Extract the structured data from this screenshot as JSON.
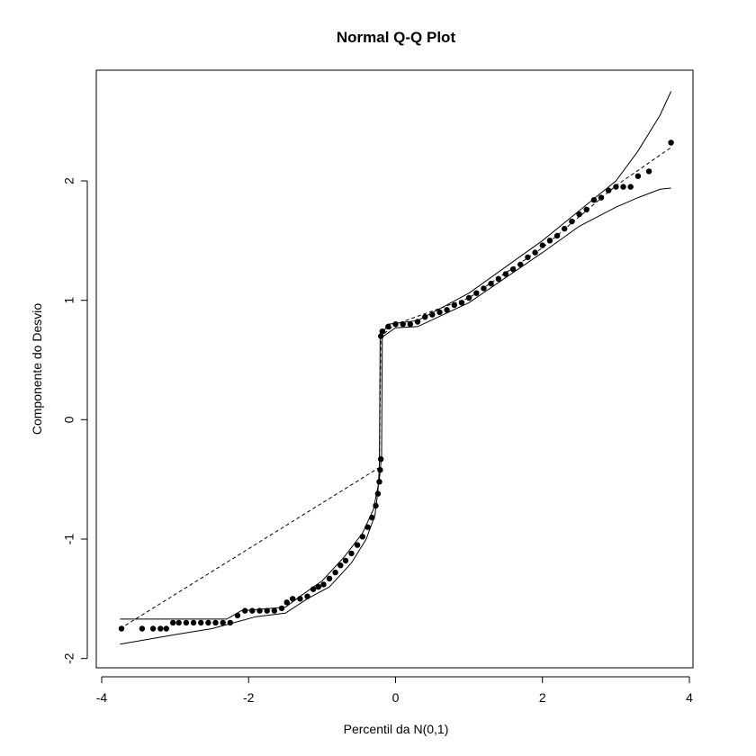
{
  "chart_data": {
    "type": "scatter",
    "title": "Normal Q-Q Plot",
    "xlabel": "Percentil da N(0,1)",
    "ylabel": "Componente do Desvio",
    "xlim": [
      -4,
      4
    ],
    "ylim": [
      -2,
      2.5
    ],
    "x_ticks": [
      -4,
      -2,
      0,
      2,
      4
    ],
    "x_tick_labels": [
      "-4",
      "-2",
      "0",
      "2",
      "4"
    ],
    "y_ticks": [
      -2,
      -1,
      0,
      1,
      2
    ],
    "y_tick_labels": [
      "-2",
      "-1",
      "0",
      "1",
      "2"
    ],
    "grid": false,
    "legend": "none",
    "colors": {
      "points": "#000000",
      "lines": "#000000",
      "background": "#ffffff"
    },
    "points": [
      [
        -3.73,
        -1.75
      ],
      [
        -3.45,
        -1.75
      ],
      [
        -3.3,
        -1.75
      ],
      [
        -3.2,
        -1.75
      ],
      [
        -3.12,
        -1.75
      ],
      [
        -3.03,
        -1.7
      ],
      [
        -2.95,
        -1.7
      ],
      [
        -2.85,
        -1.7
      ],
      [
        -2.75,
        -1.7
      ],
      [
        -2.65,
        -1.7
      ],
      [
        -2.55,
        -1.7
      ],
      [
        -2.45,
        -1.7
      ],
      [
        -2.35,
        -1.7
      ],
      [
        -2.25,
        -1.7
      ],
      [
        -2.15,
        -1.64
      ],
      [
        -2.05,
        -1.6
      ],
      [
        -1.95,
        -1.6
      ],
      [
        -1.85,
        -1.6
      ],
      [
        -1.75,
        -1.6
      ],
      [
        -1.65,
        -1.6
      ],
      [
        -1.55,
        -1.58
      ],
      [
        -1.48,
        -1.53
      ],
      [
        -1.4,
        -1.5
      ],
      [
        -1.3,
        -1.5
      ],
      [
        -1.2,
        -1.48
      ],
      [
        -1.12,
        -1.42
      ],
      [
        -1.05,
        -1.4
      ],
      [
        -0.98,
        -1.38
      ],
      [
        -0.9,
        -1.33
      ],
      [
        -0.82,
        -1.28
      ],
      [
        -0.75,
        -1.22
      ],
      [
        -0.68,
        -1.18
      ],
      [
        -0.6,
        -1.12
      ],
      [
        -0.52,
        -1.05
      ],
      [
        -0.45,
        -0.98
      ],
      [
        -0.38,
        -0.9
      ],
      [
        -0.32,
        -0.82
      ],
      [
        -0.27,
        -0.72
      ],
      [
        -0.24,
        -0.62
      ],
      [
        -0.22,
        -0.52
      ],
      [
        -0.21,
        -0.42
      ],
      [
        -0.2,
        -0.33
      ],
      [
        -0.2,
        0.7
      ],
      [
        -0.18,
        0.74
      ],
      [
        -0.1,
        0.78
      ],
      [
        0.0,
        0.8
      ],
      [
        0.1,
        0.8
      ],
      [
        0.2,
        0.8
      ],
      [
        0.3,
        0.82
      ],
      [
        0.4,
        0.86
      ],
      [
        0.5,
        0.88
      ],
      [
        0.6,
        0.9
      ],
      [
        0.7,
        0.92
      ],
      [
        0.8,
        0.96
      ],
      [
        0.9,
        0.98
      ],
      [
        1.0,
        1.02
      ],
      [
        1.1,
        1.06
      ],
      [
        1.2,
        1.1
      ],
      [
        1.3,
        1.14
      ],
      [
        1.4,
        1.18
      ],
      [
        1.5,
        1.22
      ],
      [
        1.6,
        1.26
      ],
      [
        1.7,
        1.3
      ],
      [
        1.8,
        1.36
      ],
      [
        1.9,
        1.4
      ],
      [
        2.0,
        1.46
      ],
      [
        2.1,
        1.5
      ],
      [
        2.2,
        1.54
      ],
      [
        2.3,
        1.6
      ],
      [
        2.4,
        1.66
      ],
      [
        2.5,
        1.72
      ],
      [
        2.6,
        1.76
      ],
      [
        2.7,
        1.84
      ],
      [
        2.8,
        1.86
      ],
      [
        2.9,
        1.92
      ],
      [
        3.0,
        1.95
      ],
      [
        3.1,
        1.95
      ],
      [
        3.2,
        1.95
      ],
      [
        3.3,
        2.04
      ],
      [
        3.45,
        2.08
      ],
      [
        3.75,
        2.32
      ]
    ],
    "reference_line": [
      [
        -3.75,
        -1.75
      ],
      [
        -0.22,
        -0.4
      ],
      [
        -0.2,
        0.7
      ],
      [
        0.0,
        0.8
      ],
      [
        1.0,
        1.02
      ],
      [
        2.0,
        1.44
      ],
      [
        3.0,
        1.96
      ],
      [
        3.75,
        2.28
      ]
    ],
    "upper_envelope": [
      [
        -3.75,
        -1.67
      ],
      [
        -3.0,
        -1.67
      ],
      [
        -2.3,
        -1.67
      ],
      [
        -2.1,
        -1.6
      ],
      [
        -1.5,
        -1.57
      ],
      [
        -1.3,
        -1.48
      ],
      [
        -1.0,
        -1.35
      ],
      [
        -0.7,
        -1.15
      ],
      [
        -0.45,
        -0.95
      ],
      [
        -0.3,
        -0.75
      ],
      [
        -0.22,
        -0.5
      ],
      [
        -0.19,
        -0.3
      ],
      [
        -0.18,
        0.72
      ],
      [
        -0.1,
        0.8
      ],
      [
        0.3,
        0.83
      ],
      [
        1.0,
        1.06
      ],
      [
        2.0,
        1.5
      ],
      [
        2.6,
        1.8
      ],
      [
        3.0,
        2.0
      ],
      [
        3.3,
        2.25
      ],
      [
        3.6,
        2.55
      ],
      [
        3.75,
        2.75
      ]
    ],
    "lower_envelope": [
      [
        -3.75,
        -1.88
      ],
      [
        -3.0,
        -1.8
      ],
      [
        -2.5,
        -1.75
      ],
      [
        -2.2,
        -1.7
      ],
      [
        -1.9,
        -1.65
      ],
      [
        -1.5,
        -1.62
      ],
      [
        -1.2,
        -1.5
      ],
      [
        -0.9,
        -1.4
      ],
      [
        -0.6,
        -1.2
      ],
      [
        -0.4,
        -1.0
      ],
      [
        -0.28,
        -0.8
      ],
      [
        -0.24,
        -0.6
      ],
      [
        -0.22,
        -0.4
      ],
      [
        -0.21,
        0.68
      ],
      [
        0.0,
        0.77
      ],
      [
        0.3,
        0.78
      ],
      [
        1.0,
        0.98
      ],
      [
        2.0,
        1.4
      ],
      [
        2.5,
        1.62
      ],
      [
        3.0,
        1.78
      ],
      [
        3.3,
        1.86
      ],
      [
        3.6,
        1.93
      ],
      [
        3.75,
        1.94
      ]
    ]
  }
}
